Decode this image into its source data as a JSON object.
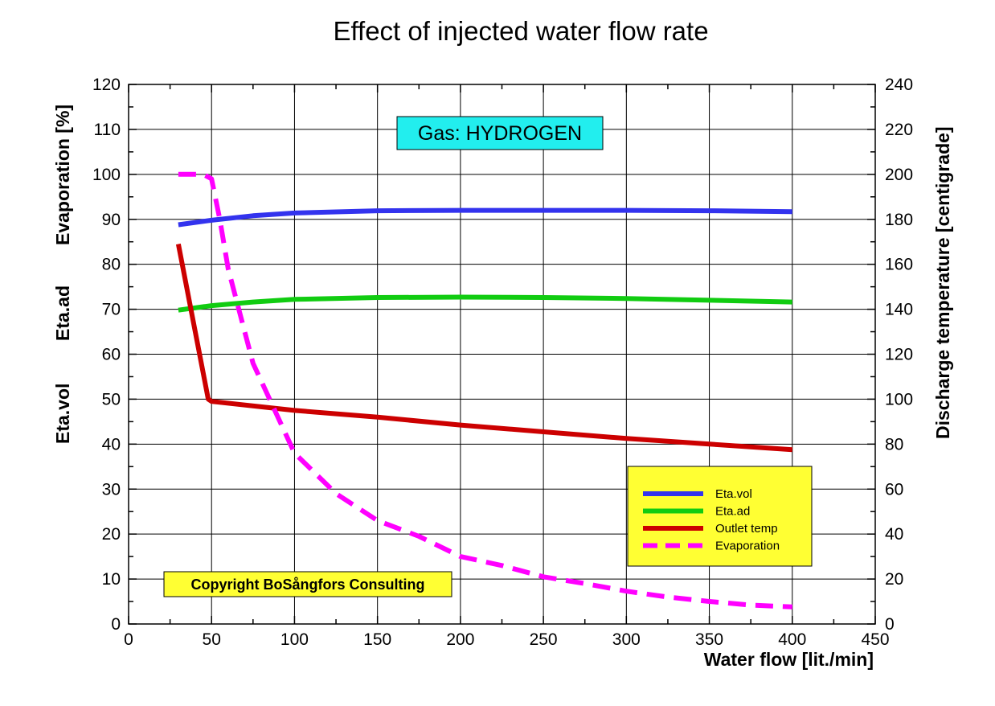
{
  "chart_data": {
    "type": "line",
    "title": "Effect of injected water flow rate",
    "xlabel": "Water flow [lit./min]",
    "ylabel_left": [
      "Evaporation [%]",
      "Eta.ad",
      "Eta.vol"
    ],
    "ylabel_right": "Discharge temperature [centigrade]",
    "xlim": [
      0,
      450
    ],
    "ylim_left": [
      0,
      120
    ],
    "ylim_right": [
      0,
      240
    ],
    "x_ticks": [
      "0",
      "50",
      "100",
      "150",
      "200",
      "250",
      "300",
      "350",
      "400",
      "450"
    ],
    "y_ticks_left": [
      "0",
      "10",
      "20",
      "30",
      "40",
      "50",
      "60",
      "70",
      "80",
      "90",
      "100",
      "110",
      "120"
    ],
    "y_ticks_right": [
      "0",
      "20",
      "40",
      "60",
      "80",
      "100",
      "120",
      "140",
      "160",
      "180",
      "200",
      "220",
      "240"
    ],
    "grid": true,
    "legend_position": "bottom-right",
    "annotations": {
      "gas": "Gas: HYDROGEN",
      "copyright": "Copyright BoSångfors Consulting"
    },
    "colors": {
      "eta_vol": "#3333ee",
      "eta_ad": "#11cc11",
      "outlet_temp": "#cc0000",
      "evaporation": "#ff00ff",
      "legend_bg": "#ffff33",
      "gas_bg": "#22eeee",
      "copyright_bg": "#ffff33"
    },
    "series": [
      {
        "name": "Eta.vol",
        "axis": "left",
        "style": "solid",
        "x": [
          30,
          50,
          75,
          100,
          150,
          200,
          250,
          300,
          350,
          400
        ],
        "y": [
          88.8,
          89.8,
          90.8,
          91.4,
          91.9,
          92.0,
          92.0,
          92.0,
          91.9,
          91.7
        ]
      },
      {
        "name": "Eta.ad",
        "axis": "left",
        "style": "solid",
        "x": [
          30,
          50,
          75,
          100,
          150,
          200,
          250,
          300,
          350,
          400
        ],
        "y": [
          69.8,
          70.8,
          71.6,
          72.2,
          72.6,
          72.7,
          72.6,
          72.4,
          72.0,
          71.6
        ]
      },
      {
        "name": "Outlet temp",
        "axis": "right",
        "style": "solid",
        "x": [
          30,
          48,
          50,
          100,
          150,
          200,
          250,
          300,
          350,
          400
        ],
        "y": [
          169,
          100,
          99,
          95,
          92,
          88.5,
          85.5,
          82.5,
          80,
          77.5
        ]
      },
      {
        "name": "Evaporation",
        "axis": "left",
        "style": "dashed",
        "x": [
          30,
          45,
          50,
          55,
          60,
          75,
          100,
          125,
          150,
          175,
          200,
          225,
          250,
          275,
          300,
          325,
          350,
          375,
          400
        ],
        "y": [
          100,
          100,
          99,
          90,
          79,
          58,
          38,
          29,
          23,
          19.5,
          15,
          13,
          10.5,
          9,
          7.3,
          6,
          5,
          4.2,
          3.8
        ]
      }
    ]
  }
}
